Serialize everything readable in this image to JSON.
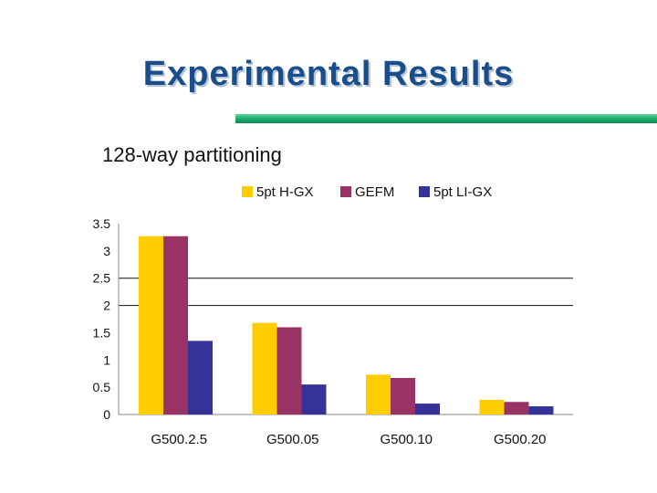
{
  "slide": {
    "title": "Experimental Results",
    "subtitle": "128-way partitioning"
  },
  "chart_data": {
    "type": "bar",
    "categories": [
      "G500.2.5",
      "G500.05",
      "G500.10",
      "G500.20"
    ],
    "series": [
      {
        "name": "5pt H-GX",
        "color": "#ffcc00",
        "values": [
          3.27,
          1.68,
          0.73,
          0.27
        ]
      },
      {
        "name": "GEFM",
        "color": "#993366",
        "values": [
          3.27,
          1.6,
          0.67,
          0.23
        ]
      },
      {
        "name": "5pt LI-GX",
        "color": "#333399",
        "values": [
          1.35,
          0.55,
          0.2,
          0.15
        ]
      }
    ],
    "yticks": [
      "0",
      "0.5",
      "1",
      "1.5",
      "2",
      "2.5",
      "3",
      "3.5"
    ],
    "ylim": [
      0,
      3.5
    ],
    "gridlines": [
      2,
      2.5
    ],
    "legend": "top"
  }
}
